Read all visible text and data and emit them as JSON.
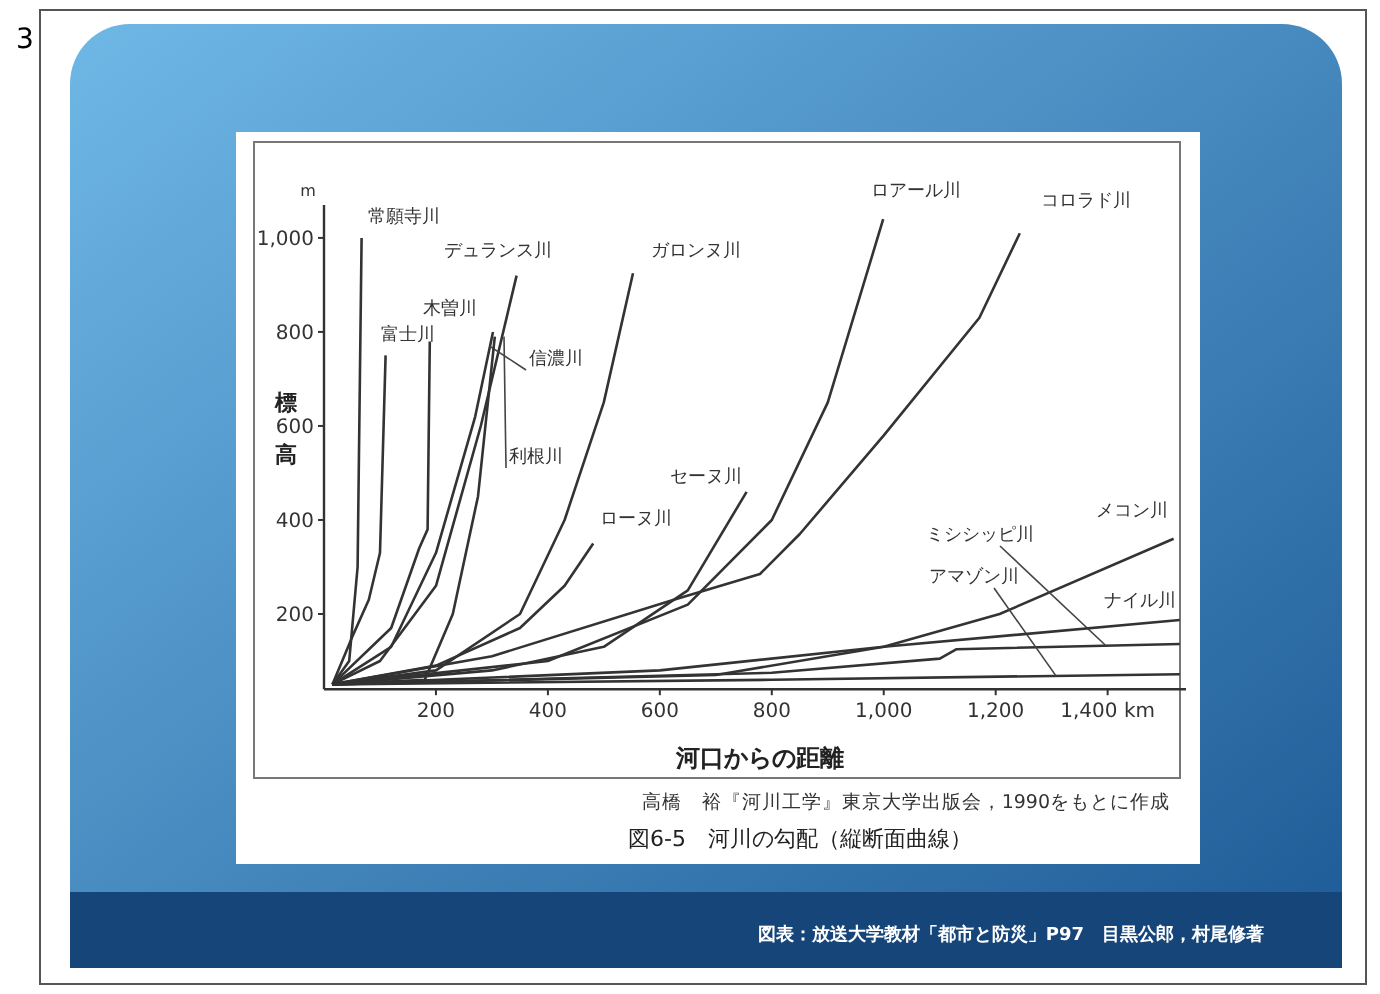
{
  "chart_data": {
    "type": "line",
    "title": "図6-5　河川の勾配（縦断面曲線）",
    "xlabel": "河口からの距離",
    "ylabel": "標高",
    "annotations": [
      "m",
      "高橋　裕『河川工学』東京大学出版会，1990をもとに作成",
      "図表：放送大学教材「都市と防災」P97　目黒公郎，村尾修著",
      "3"
    ],
    "xlim": [
      0,
      1540
    ],
    "ylim": [
      40,
      1070
    ],
    "xticks": [
      200,
      400,
      600,
      800,
      {
        "value": 1000,
        "label": "1,000"
      },
      {
        "value": 1200,
        "label": "1,200"
      },
      {
        "value": 1400,
        "label": "1,400 km"
      }
    ],
    "yticks": [
      200,
      400,
      600,
      800,
      {
        "value": 1000,
        "label": "1,000"
      }
    ],
    "grid": false,
    "marker": "none",
    "line_style": "solid",
    "series": [
      {
        "name": "常願寺川",
        "color": "#333333",
        "x": [
          15,
          45,
          60,
          67
        ],
        "values": [
          50,
          100,
          300,
          1000
        ]
      },
      {
        "name": "富士川",
        "color": "#333333",
        "x": [
          15,
          50,
          80,
          100,
          110
        ],
        "values": [
          50,
          150,
          230,
          330,
          750
        ]
      },
      {
        "name": "木曽川",
        "color": "#333333",
        "x": [
          15,
          120,
          170,
          185,
          189
        ],
        "values": [
          50,
          170,
          340,
          380,
          780
        ]
      },
      {
        "name": "デュランス川",
        "color": "#333333",
        "x": [
          15,
          100,
          200,
          280,
          344
        ],
        "values": [
          50,
          100,
          260,
          600,
          920
        ]
      },
      {
        "name": "信濃川",
        "color": "#333333",
        "x": [
          15,
          120,
          200,
          270,
          302
        ],
        "values": [
          50,
          130,
          330,
          620,
          800
        ]
      },
      {
        "name": "利根川",
        "color": "#333333",
        "x": [
          15,
          180,
          230,
          275,
          305
        ],
        "values": [
          50,
          60,
          200,
          450,
          790
        ]
      },
      {
        "name": "ガロンヌ川",
        "color": "#333333",
        "x": [
          15,
          200,
          350,
          430,
          500,
          552
        ],
        "values": [
          50,
          80,
          200,
          400,
          650,
          925
        ]
      },
      {
        "name": "ローヌ川",
        "color": "#333333",
        "x": [
          15,
          200,
          350,
          430,
          481
        ],
        "values": [
          50,
          90,
          170,
          260,
          350
        ]
      },
      {
        "name": "セーヌ川",
        "color": "#333333",
        "x": [
          15,
          300,
          500,
          650,
          755
        ],
        "values": [
          50,
          80,
          130,
          250,
          460
        ]
      },
      {
        "name": "ロアール川",
        "color": "#333333",
        "x": [
          15,
          400,
          650,
          800,
          900,
          999
        ],
        "values": [
          50,
          100,
          220,
          400,
          650,
          1040
        ]
      },
      {
        "name": "コロラド川",
        "color": "#333333",
        "x": [
          15,
          300,
          625,
          779,
          850,
          1000,
          1171,
          1243
        ],
        "values": [
          50,
          110,
          230,
          285,
          370,
          580,
          830,
          1010
        ]
      },
      {
        "name": "メコン川",
        "color": "#333333",
        "x": [
          15,
          700,
          1000,
          1207,
          1518
        ],
        "values": [
          50,
          70,
          130,
          200,
          360
        ]
      },
      {
        "name": "ミシシッピ川",
        "color": "#333333",
        "x": [
          15,
          800,
          1100,
          1130,
          1529
        ],
        "values": [
          50,
          75,
          105,
          125,
          136
        ]
      },
      {
        "name": "アマゾン川",
        "color": "#333333",
        "x": [
          15,
          800,
          1529
        ],
        "values": [
          50,
          60,
          72
        ]
      },
      {
        "name": "ナイル川",
        "color": "#333333",
        "x": [
          15,
          600,
          1000,
          1529
        ],
        "values": [
          50,
          80,
          130,
          187
        ]
      }
    ]
  }
}
